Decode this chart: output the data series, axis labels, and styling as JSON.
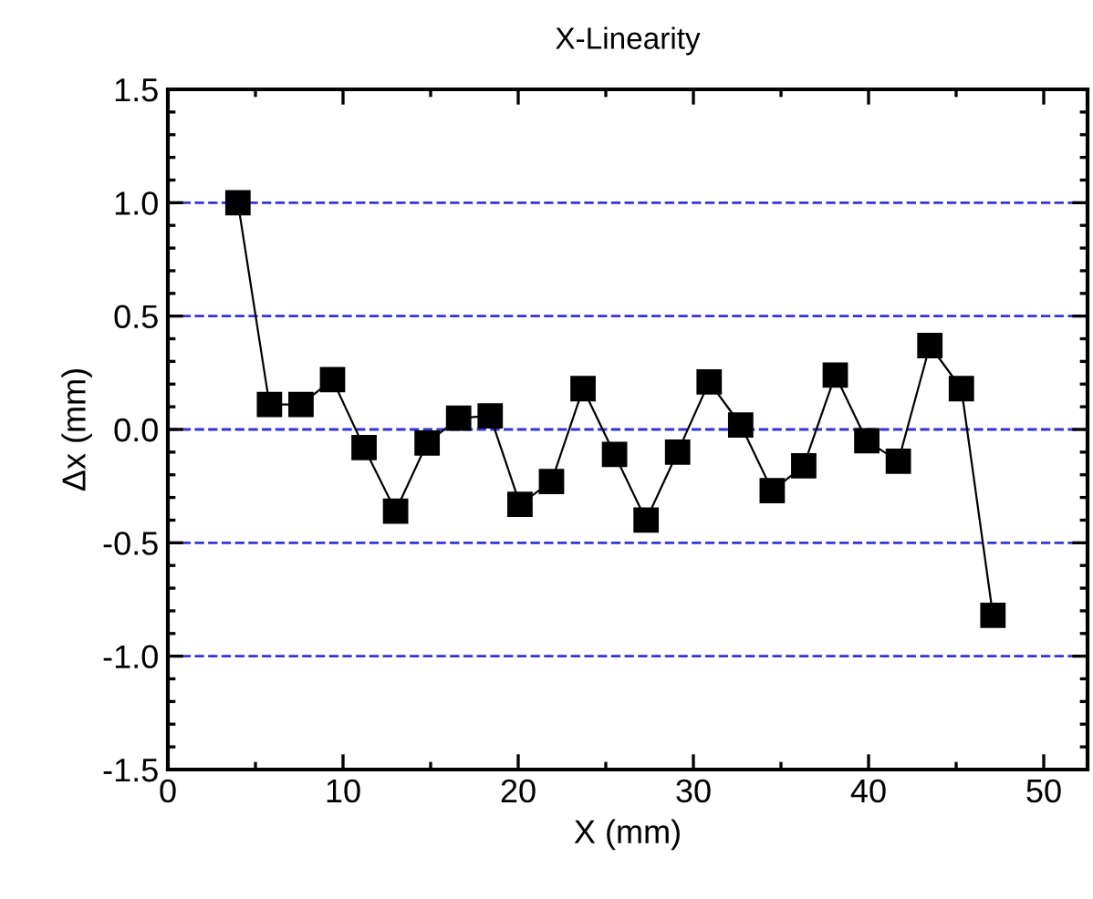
{
  "chart_data": {
    "type": "line",
    "title": "X-Linearity",
    "xlabel": "X (mm)",
    "ylabel": "Δx (mm)",
    "x": [
      4,
      5.8,
      7.6,
      9.4,
      11.2,
      13,
      14.8,
      16.6,
      18.4,
      20.1,
      21.9,
      23.7,
      25.5,
      27.3,
      29.1,
      30.9,
      32.7,
      34.5,
      36.3,
      38.1,
      39.9,
      41.7,
      43.5,
      45.3,
      47.1
    ],
    "series": [
      {
        "color": "#000000",
        "values": [
          1.0,
          0.11,
          0.11,
          0.22,
          -0.08,
          -0.36,
          -0.06,
          0.05,
          0.06,
          -0.33,
          -0.23,
          0.18,
          -0.11,
          -0.4,
          -0.1,
          0.21,
          0.02,
          -0.27,
          -0.16,
          0.24,
          -0.05,
          -0.14,
          0.37,
          0.18,
          -0.82
        ]
      }
    ],
    "marker": "square",
    "line_style": "solid",
    "xlim": [
      0,
      52.5
    ],
    "ylim": [
      -1.5,
      1.5
    ],
    "xticks": [
      0,
      10,
      20,
      30,
      40,
      50
    ],
    "yticks": [
      {
        "value": -1.5,
        "label": "-1.5"
      },
      {
        "value": -1.0,
        "label": "-1.0"
      },
      {
        "value": -0.5,
        "label": "-0.5"
      },
      {
        "value": 0.0,
        "label": "0.0"
      },
      {
        "value": 0.5,
        "label": "0.5"
      },
      {
        "value": 1.0,
        "label": "1.0"
      },
      {
        "value": 1.5,
        "label": "1.5"
      }
    ],
    "ref_lines": [
      {
        "axis": "y",
        "value": 1.0,
        "color": "#3333dd",
        "line_style": "dashed"
      },
      {
        "axis": "y",
        "value": 0.5,
        "color": "#3333dd",
        "line_style": "dashed"
      },
      {
        "axis": "y",
        "value": 0.0,
        "color": "#3333dd",
        "line_style": "dashed"
      },
      {
        "axis": "y",
        "value": -0.5,
        "color": "#3333dd",
        "line_style": "dashed"
      },
      {
        "axis": "y",
        "value": -1.0,
        "color": "#3333dd",
        "line_style": "dashed"
      }
    ],
    "grid": false,
    "legend": false
  }
}
